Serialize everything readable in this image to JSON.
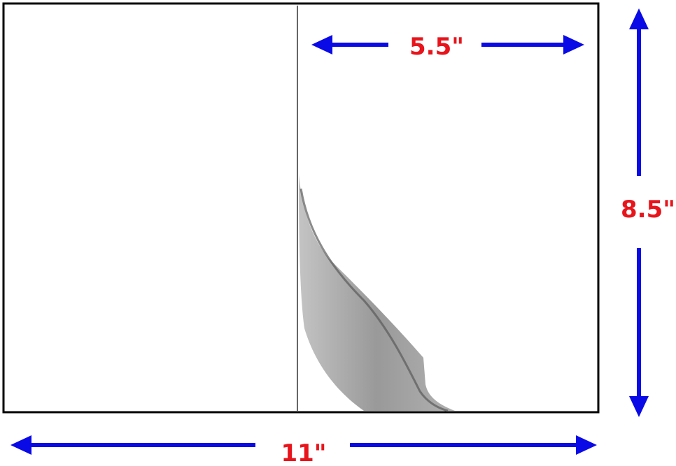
{
  "labels": {
    "half_width": "5.5\"",
    "height": "8.5\"",
    "full_width": "11\""
  },
  "colors": {
    "arrow": "#0a0ae6",
    "label": "#e8141b",
    "border": "#000000",
    "shadow": "#8a8a8a"
  }
}
